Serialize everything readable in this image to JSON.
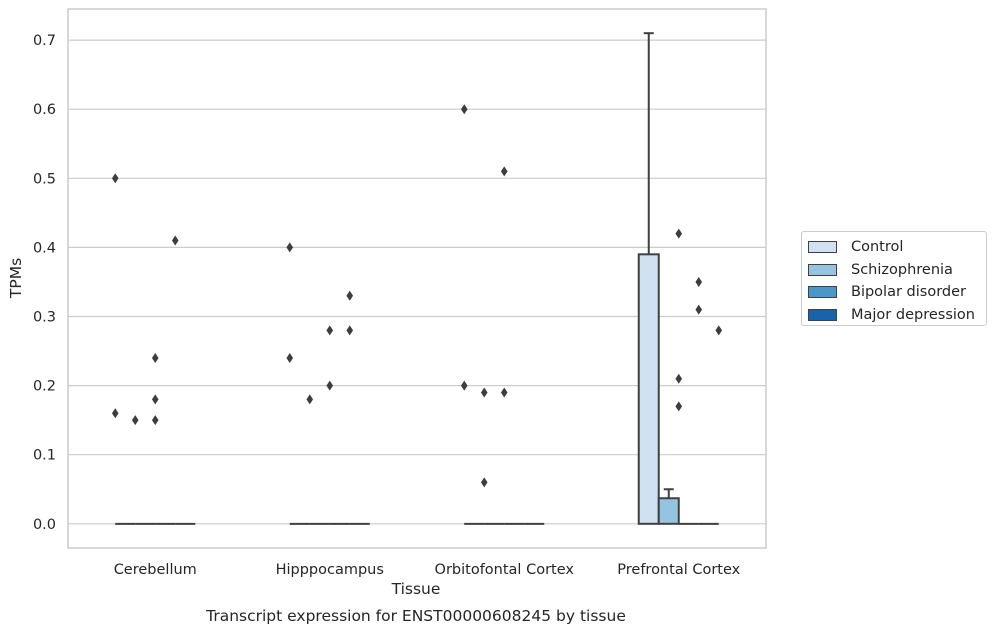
{
  "chart_data": {
    "type": "bar",
    "footer": "Transcript expression for ENST00000608245 by tissue",
    "xlabel": "Tissue",
    "ylabel": "TPMs",
    "categories": [
      "Cerebellum",
      "Hipppocampus",
      "Orbitofontal Cortex",
      "Prefrontal Cortex"
    ],
    "ylim": [
      -0.035,
      0.745
    ],
    "yticks": [
      "0.0",
      "0.1",
      "0.2",
      "0.3",
      "0.4",
      "0.5",
      "0.6",
      "0.7"
    ],
    "grid": true,
    "legend_position": "right",
    "series": [
      {
        "name": "Control",
        "color": "#d0e1f2",
        "values": [
          0.0,
          0.0,
          0.0,
          0.39
        ],
        "err_top": [
          null,
          null,
          null,
          0.71
        ]
      },
      {
        "name": "Schizophrenia",
        "color": "#94c4df",
        "values": [
          0.0,
          0.0,
          0.0,
          0.037
        ],
        "err_top": [
          null,
          null,
          null,
          0.05
        ]
      },
      {
        "name": "Bipolar disorder",
        "color": "#4a98c9",
        "values": [
          0.0,
          0.0,
          0.0,
          0.0
        ],
        "err_top": [
          null,
          null,
          null,
          null
        ]
      },
      {
        "name": "Major depression",
        "color": "#1764ab",
        "values": [
          0.0,
          0.0,
          0.0,
          0.0
        ],
        "err_top": [
          null,
          null,
          null,
          null
        ]
      }
    ],
    "outliers": [
      {
        "category": 0,
        "series": 0,
        "y": [
          0.5,
          0.16
        ]
      },
      {
        "category": 0,
        "series": 1,
        "y": [
          0.15
        ]
      },
      {
        "category": 0,
        "series": 2,
        "y": [
          0.24,
          0.18,
          0.15
        ]
      },
      {
        "category": 0,
        "series": 3,
        "y": [
          0.41
        ]
      },
      {
        "category": 1,
        "series": 0,
        "y": [
          0.4,
          0.24
        ]
      },
      {
        "category": 1,
        "series": 1,
        "y": [
          0.18
        ]
      },
      {
        "category": 1,
        "series": 2,
        "y": [
          0.28,
          0.2
        ]
      },
      {
        "category": 1,
        "series": 3,
        "y": [
          0.33,
          0.28
        ]
      },
      {
        "category": 2,
        "series": 0,
        "y": [
          0.6,
          0.2
        ]
      },
      {
        "category": 2,
        "series": 1,
        "y": [
          0.19,
          0.06
        ]
      },
      {
        "category": 2,
        "series": 2,
        "y": [
          0.51,
          0.19
        ]
      },
      {
        "category": 3,
        "series": 2,
        "y": [
          0.42,
          0.21,
          0.17
        ]
      },
      {
        "category": 3,
        "series": 3,
        "y": [
          0.35,
          0.31
        ]
      },
      {
        "category": 3,
        "series": 4,
        "y": [
          0.28
        ]
      }
    ]
  }
}
